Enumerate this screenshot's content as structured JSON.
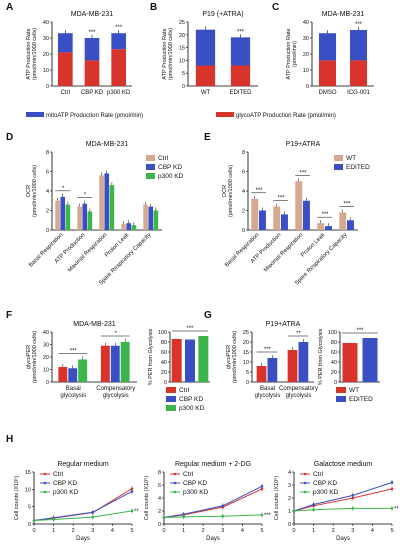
{
  "colors": {
    "blue": "#3a4fc4",
    "red": "#d9342b",
    "pink": "#f2b3b3",
    "green": "#3cb54a",
    "tan": "#d4a98f",
    "lightblue": "#9fb3f0"
  },
  "chart_data": [
    {
      "id": "A",
      "type": "bar",
      "panel_letter": "A",
      "title": "MDA-MB-231",
      "ylabel": "ATP Production Rate (pmol/min/1000 cells)",
      "categories": [
        "Ctrl",
        "CBP KD",
        "p300 KD"
      ],
      "ylim": [
        0,
        40
      ],
      "ticks": [
        0,
        10,
        20,
        30,
        40
      ],
      "series": [
        {
          "name": "glycoATP Production Rate (pmol/min)",
          "color": "red",
          "values": [
            21,
            16,
            23
          ]
        },
        {
          "name": "mitoATP Production Rate (pmol/min)",
          "color": "blue",
          "values": [
            12,
            14,
            10
          ]
        }
      ],
      "sig": [
        "",
        "***",
        "***"
      ]
    },
    {
      "id": "B",
      "type": "bar",
      "panel_letter": "B",
      "title": "P19 (+ATRA)",
      "ylabel": "ATP Production Rate (pmol/min/1000 cells)",
      "categories": [
        "WT",
        "EDITED"
      ],
      "ylim": [
        0,
        25
      ],
      "ticks": [
        0,
        5,
        10,
        15,
        20,
        25
      ],
      "series": [
        {
          "name": "glyco",
          "color": "red",
          "values": [
            8,
            8
          ]
        },
        {
          "name": "mito",
          "color": "blue",
          "values": [
            14,
            11
          ]
        }
      ],
      "sig": [
        "",
        "***"
      ]
    },
    {
      "id": "C",
      "type": "bar",
      "panel_letter": "C",
      "title": "MDA-MB-231",
      "ylabel": "ATP Production Rate (pmol/min)",
      "categories": [
        "DMSO",
        "ICG-001"
      ],
      "ylim": [
        0,
        40
      ],
      "ticks": [
        0,
        10,
        20,
        30,
        40
      ],
      "series": [
        {
          "name": "glyco",
          "color": "red",
          "values": [
            16,
            16
          ]
        },
        {
          "name": "mito",
          "color": "blue",
          "values": [
            17,
            19
          ]
        }
      ],
      "sig": [
        "",
        "***"
      ]
    },
    {
      "id": "D",
      "type": "bar",
      "panel_letter": "D",
      "title": "MDA-MB-231",
      "ylabel": "OCR (pmol/min/1000 cells)",
      "categories": [
        "Basal Respiration",
        "ATP Production",
        "Maximal Respiration",
        "Proton Leak",
        "Spare Respiratory Capacity"
      ],
      "ylim": [
        0,
        8
      ],
      "ticks": [
        0,
        2,
        4,
        6,
        8
      ],
      "series": [
        {
          "name": "Ctrl",
          "color": "tan",
          "values": [
            3.0,
            2.4,
            5.6,
            0.6,
            2.6
          ]
        },
        {
          "name": "CBP KD",
          "color": "blue",
          "values": [
            3.4,
            2.7,
            5.8,
            0.7,
            2.4
          ]
        },
        {
          "name": "p300 KD",
          "color": "green",
          "values": [
            2.6,
            1.9,
            4.6,
            0.5,
            2.0
          ]
        }
      ],
      "sig": [
        "*",
        "*",
        "",
        "",
        ""
      ]
    },
    {
      "id": "E",
      "type": "bar",
      "panel_letter": "E",
      "title": "P19+ATRA",
      "ylabel": "OCR (pmol/min/1000 cells)",
      "categories": [
        "Basal Respiration",
        "ATP Production",
        "Maximal Respiration",
        "Proton Leak",
        "Spare Respiratory Capacity"
      ],
      "ylim": [
        0,
        8
      ],
      "ticks": [
        0,
        2,
        4,
        6,
        8
      ],
      "series": [
        {
          "name": "WT",
          "color": "tan",
          "values": [
            3.2,
            2.4,
            5.0,
            0.7,
            1.8
          ]
        },
        {
          "name": "EDITED",
          "color": "blue",
          "values": [
            2.0,
            1.6,
            3.0,
            0.4,
            1.0
          ]
        }
      ],
      "sig": [
        "***",
        "***",
        "***",
        "***",
        "***"
      ]
    },
    {
      "id": "F1",
      "type": "bar",
      "panel_letter": "F",
      "title": "MDA-MB-231",
      "ylabel": "glycoPER (pmol/min/1000 cells)",
      "categories": [
        "Basal glycolysis",
        "Compensatory glycolysis"
      ],
      "ylim": [
        0,
        40
      ],
      "ticks": [
        0,
        10,
        20,
        30,
        40
      ],
      "series": [
        {
          "name": "Ctrl",
          "color": "red",
          "values": [
            12,
            29
          ]
        },
        {
          "name": "CBP KD",
          "color": "blue",
          "values": [
            11,
            29
          ]
        },
        {
          "name": "p300 KD",
          "color": "green",
          "values": [
            18,
            32
          ]
        }
      ],
      "sig": [
        "***",
        "*"
      ]
    },
    {
      "id": "F2",
      "type": "bar",
      "title": "",
      "ylabel": "% PER from Glycolysis",
      "categories": [
        "Ctrl",
        "CBP KD",
        "p300 KD"
      ],
      "ylim": [
        0,
        100
      ],
      "ticks": [
        0,
        20,
        40,
        60,
        80,
        100
      ],
      "series": [
        {
          "name": "pct",
          "values": [
            86,
            85,
            92
          ]
        }
      ],
      "legend": [
        "Ctrl",
        "CBP KD",
        "p300 KD"
      ],
      "sig": [
        "***"
      ]
    },
    {
      "id": "G1",
      "type": "bar",
      "panel_letter": "G",
      "title": "P19+ATRA",
      "ylabel": "glycoPER (pmol/min/1000 cells)",
      "categories": [
        "Basal glycolysis",
        "Compensatory glycolysis"
      ],
      "ylim": [
        0,
        25
      ],
      "ticks": [
        0,
        5,
        10,
        15,
        20,
        25
      ],
      "series": [
        {
          "name": "WT",
          "color": "red",
          "values": [
            8,
            16
          ]
        },
        {
          "name": "EDITED",
          "color": "blue",
          "values": [
            12,
            20
          ]
        }
      ],
      "sig": [
        "***",
        "**"
      ]
    },
    {
      "id": "G2",
      "type": "bar",
      "title": "",
      "ylabel": "% PER from Glycolysis",
      "categories": [
        "WT",
        "EDITED"
      ],
      "ylim": [
        0,
        100
      ],
      "ticks": [
        0,
        20,
        40,
        60,
        80,
        100
      ],
      "series": [
        {
          "name": "pct",
          "values": [
            78,
            88
          ]
        }
      ],
      "legend": [
        "WT",
        "EDITED"
      ],
      "sig": [
        "***"
      ]
    },
    {
      "id": "H1",
      "type": "line",
      "panel_letter": "H",
      "title": "Regular medium",
      "ylabel": "Cell counts (X10⁵)",
      "xlabel": "Days",
      "x": [
        0,
        1,
        2,
        3,
        4,
        5
      ],
      "xticks": [
        0,
        1,
        2,
        3,
        4,
        5
      ],
      "ylim": [
        0,
        15
      ],
      "ticks": [
        0,
        5,
        10,
        15
      ],
      "series": [
        {
          "name": "Ctrl",
          "color": "red",
          "x": [
            0,
            1,
            3,
            5
          ],
          "values": [
            1,
            1.7,
            3.3,
            10.2
          ]
        },
        {
          "name": "CBP KD",
          "color": "blue",
          "x": [
            0,
            1,
            3,
            5
          ],
          "values": [
            1,
            1.8,
            3.4,
            9.4
          ]
        },
        {
          "name": "p300 KD",
          "color": "green",
          "x": [
            0,
            1,
            3,
            5
          ],
          "values": [
            1,
            1.3,
            2.0,
            3.8
          ]
        }
      ],
      "sig": "**"
    },
    {
      "id": "H2",
      "type": "line",
      "title": "Regular medium + 2-DG",
      "ylabel": "Cell counts (X10⁵)",
      "xlabel": "Days",
      "x": [
        0,
        1,
        2,
        3,
        4,
        5
      ],
      "xticks": [
        0,
        1,
        2,
        3,
        4,
        5
      ],
      "ylim": [
        0,
        8
      ],
      "ticks": [
        0,
        2,
        4,
        6,
        8
      ],
      "series": [
        {
          "name": "Ctrl",
          "color": "red",
          "x": [
            0,
            1,
            3,
            5
          ],
          "values": [
            1,
            1.4,
            2.6,
            5.4
          ]
        },
        {
          "name": "CBP KD",
          "color": "blue",
          "x": [
            0,
            1,
            3,
            5
          ],
          "values": [
            1,
            1.5,
            2.8,
            5.8
          ]
        },
        {
          "name": "p300 KD",
          "color": "green",
          "x": [
            0,
            1,
            3,
            5
          ],
          "values": [
            1,
            1.1,
            1.2,
            1.4
          ]
        }
      ],
      "sig": "***"
    },
    {
      "id": "H3",
      "type": "line",
      "title": "Galactose medium",
      "ylabel": "Cell counts (X10⁵)",
      "xlabel": "Days",
      "x": [
        0,
        1,
        2,
        3,
        4,
        5
      ],
      "xticks": [
        0,
        1,
        2,
        3,
        4,
        5
      ],
      "ylim": [
        0,
        4
      ],
      "ticks": [
        0,
        1,
        2,
        3,
        4
      ],
      "series": [
        {
          "name": "Ctrl",
          "color": "red",
          "x": [
            0,
            1,
            3,
            5
          ],
          "values": [
            1,
            1.4,
            2.0,
            2.7
          ]
        },
        {
          "name": "CBP KD",
          "color": "blue",
          "x": [
            0,
            1,
            3,
            5
          ],
          "values": [
            1,
            1.5,
            2.2,
            3.2
          ]
        },
        {
          "name": "p300 KD",
          "color": "green",
          "x": [
            0,
            1,
            3,
            5
          ],
          "values": [
            1,
            1.1,
            1.2,
            1.2
          ]
        }
      ],
      "sig": "**"
    }
  ]
}
